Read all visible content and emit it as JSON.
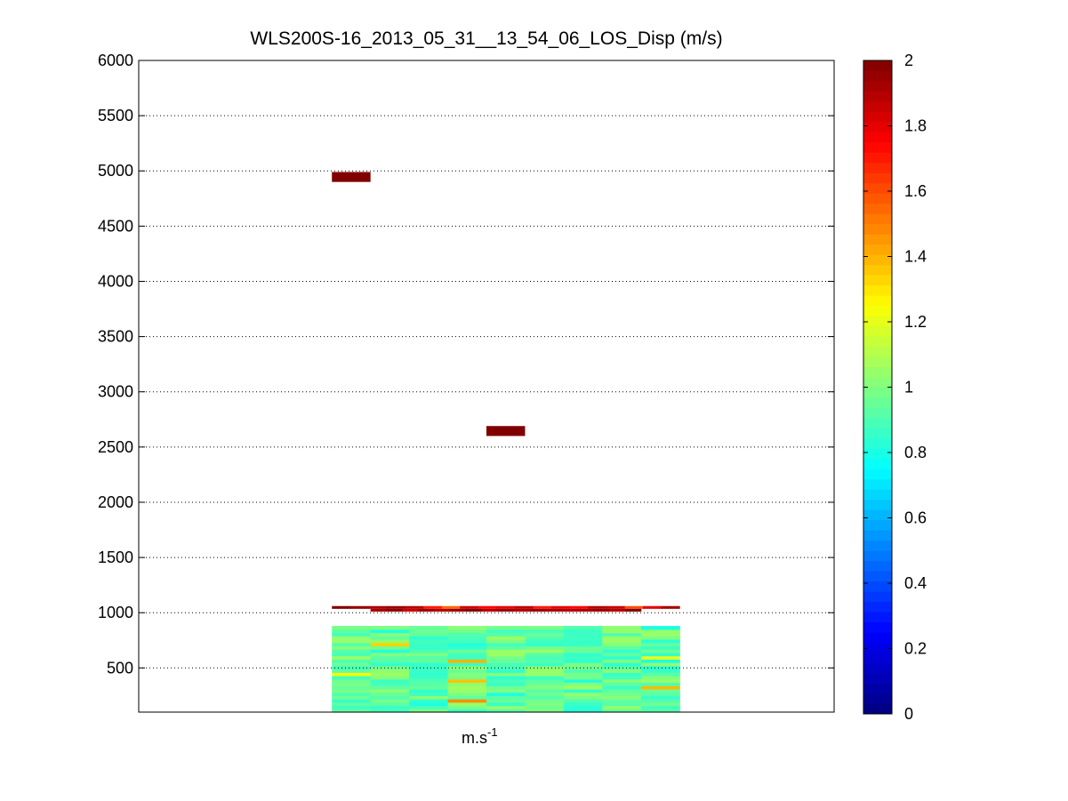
{
  "chart_data": {
    "type": "heatmap",
    "title": "WLS200S-16_2013_05_31__13_54_06_LOS_Disp (m/s)",
    "xlabel": {
      "base": "m.s",
      "superscript": "-1"
    },
    "ylabel": "",
    "ylim": [
      100,
      6000
    ],
    "yticks": [
      500,
      1000,
      1500,
      2000,
      2500,
      3000,
      3500,
      4000,
      4500,
      5000,
      5500,
      6000
    ],
    "grid": "horizontal dotted",
    "colorbar": {
      "colormap": "jet",
      "range": [
        0,
        2
      ],
      "ticks": [
        "0",
        "0.2",
        "0.4",
        "0.6",
        "0.8",
        "1",
        "1.2",
        "1.4",
        "1.6",
        "1.8",
        "2"
      ],
      "placement": "right"
    },
    "columns": {
      "count": 18,
      "first_data_column": 5,
      "last_data_column": 13
    },
    "high_altitude_cells": [
      {
        "column": 5,
        "y0": 4900,
        "y1": 4990,
        "value": 2.0
      },
      {
        "column": 9,
        "y0": 2600,
        "y1": 2690,
        "value": 2.0
      }
    ],
    "cloud_layer": {
      "upper": {
        "y0": 1035,
        "y1": 1060,
        "values": [
          2.0,
          1.95,
          1.92,
          1.95,
          1.9,
          1.7,
          1.55,
          1.85,
          1.75,
          1.8,
          1.88,
          1.7,
          1.8,
          1.75,
          1.9,
          1.86,
          1.6,
          1.8,
          1.92
        ]
      },
      "lower": {
        "y0": 1010,
        "y1": 1035,
        "values": [
          1.92,
          1.97,
          1.85,
          1.95,
          1.9,
          1.95,
          2.0,
          1.9,
          1.95,
          1.9,
          1.95,
          1.92,
          1.9,
          1.92,
          1.95,
          1.9,
          2.0
        ]
      }
    },
    "boundary_layer": {
      "y_range": [
        100,
        880
      ],
      "bin_height": 30,
      "typical_value": 0.95,
      "value_range": [
        0.78,
        1.5
      ]
    }
  }
}
